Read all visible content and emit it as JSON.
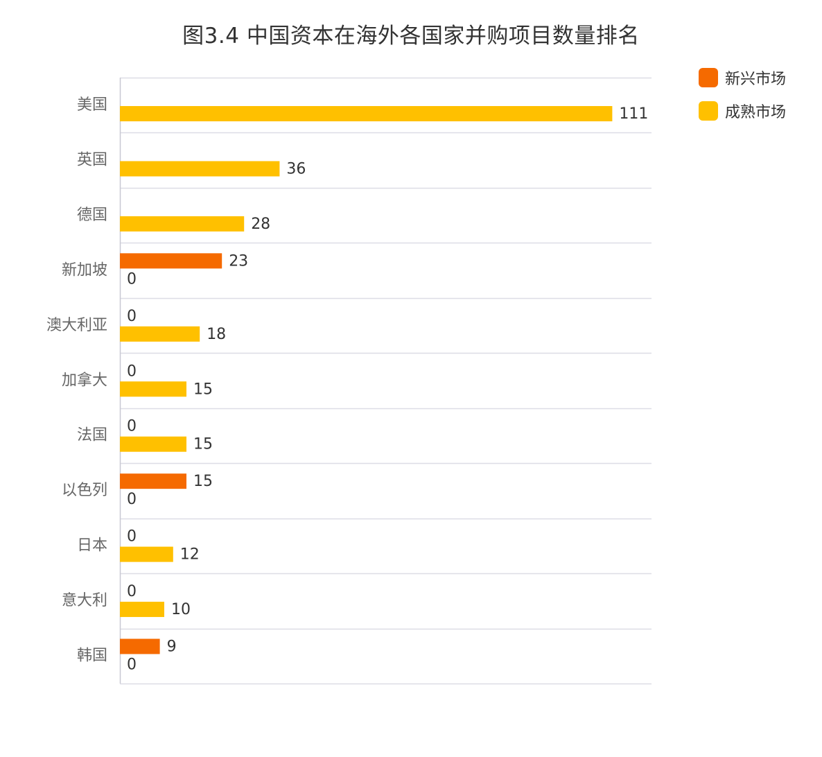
{
  "title": "图3.4  中国资本在海外各国家并购项目数量排名",
  "colors": {
    "emerging": "#f56a00",
    "mature": "#ffc000",
    "grid": "#dddde6",
    "axis": "#c8c8d2"
  },
  "chart_data": {
    "type": "bar",
    "orientation": "horizontal",
    "title": "图3.4  中国资本在海外各国家并购项目数量排名",
    "categories": [
      "美国",
      "英国",
      "德国",
      "新加坡",
      "澳大利亚",
      "加拿大",
      "法国",
      "以色列",
      "日本",
      "意大利",
      "韩国"
    ],
    "series": [
      {
        "name": "新兴市场",
        "color": "#f56a00",
        "values": [
          null,
          null,
          null,
          23,
          0,
          0,
          0,
          15,
          0,
          0,
          9
        ]
      },
      {
        "name": "成熟市场",
        "color": "#ffc000",
        "values": [
          111,
          36,
          28,
          0,
          18,
          15,
          15,
          0,
          12,
          10,
          0
        ]
      }
    ],
    "xlim": [
      0,
      120
    ],
    "grid": true,
    "legend_position": "top-right"
  }
}
